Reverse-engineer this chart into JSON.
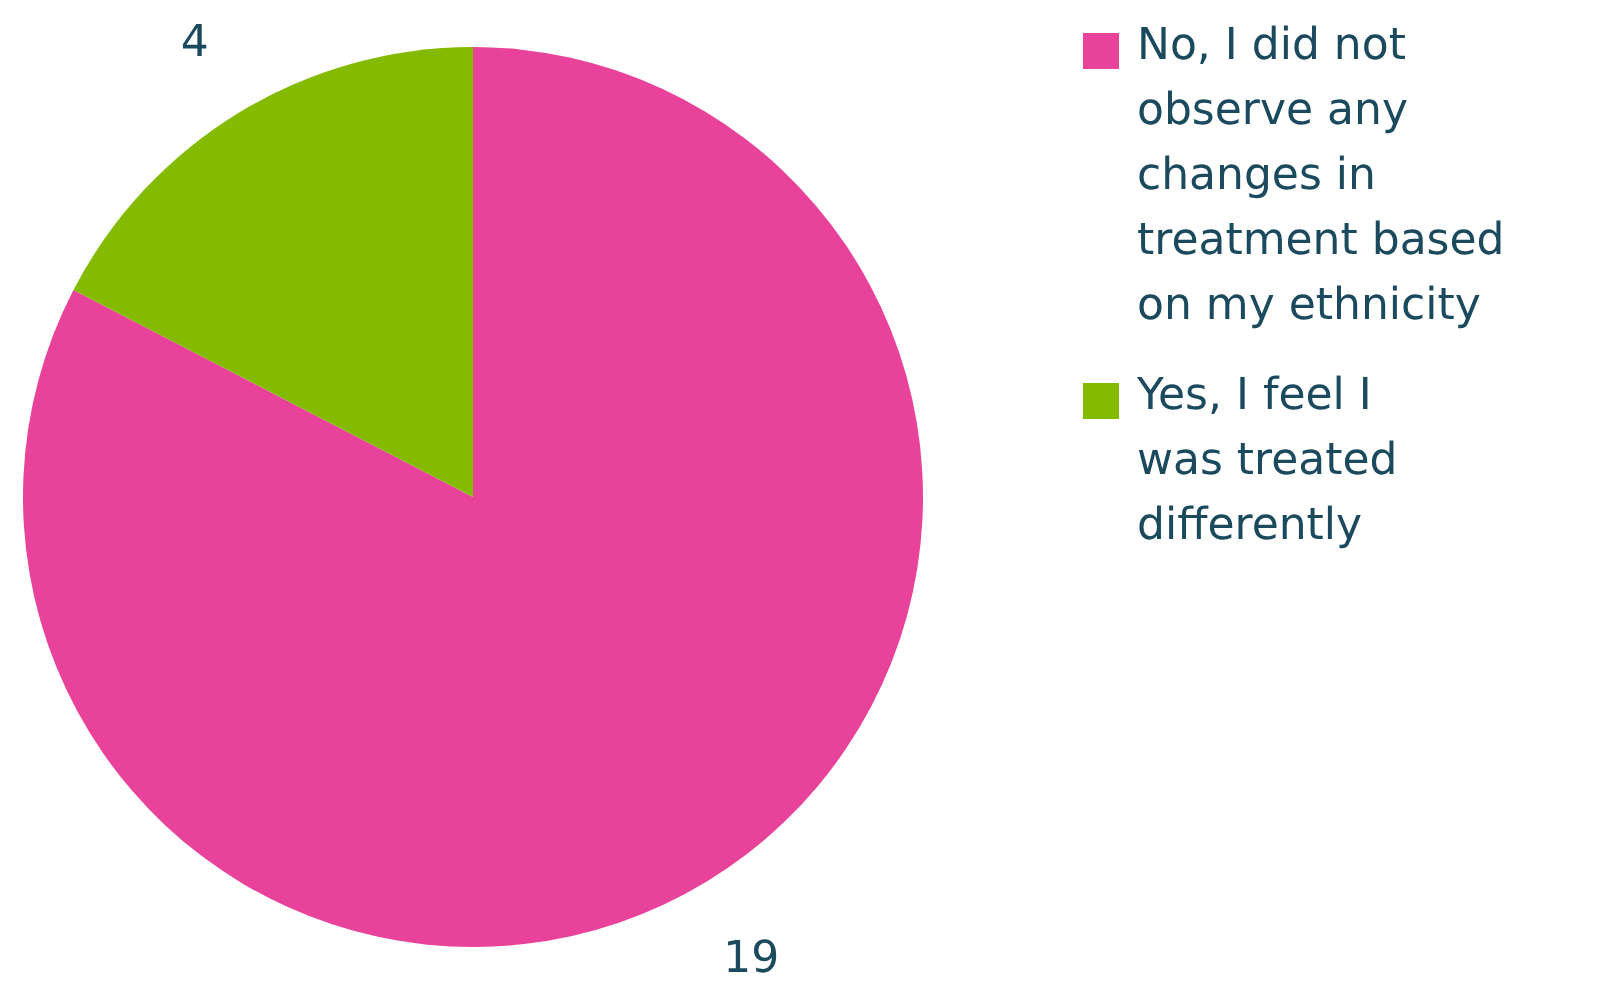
{
  "chart_data": {
    "type": "pie",
    "categories": [
      "No, I did not observe any changes in treatment based on my ethnicity",
      "Yes, I feel I was treated differently"
    ],
    "values": [
      19,
      4
    ],
    "colors": [
      "#e8429a",
      "#84bb00"
    ],
    "data_labels": true,
    "legend": "right"
  }
}
